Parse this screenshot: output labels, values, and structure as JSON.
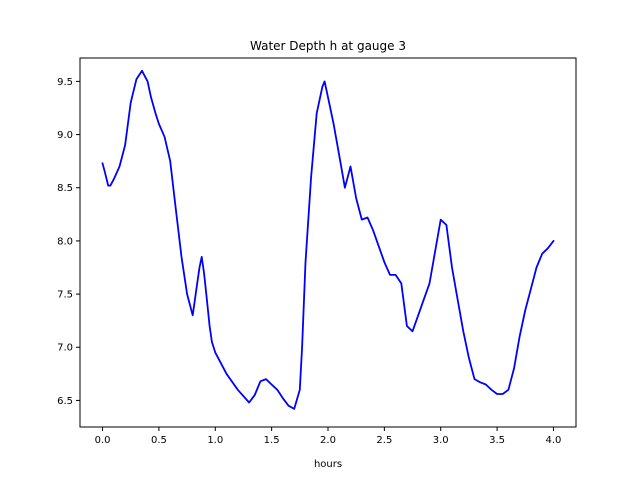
{
  "chart_data": {
    "type": "line",
    "title": "Water Depth h at gauge 3",
    "xlabel": "hours",
    "ylabel": "",
    "xlim": [
      -0.2,
      4.2
    ],
    "ylim": [
      6.25,
      9.72
    ],
    "x_ticks": [
      "0.0",
      "0.5",
      "1.0",
      "1.5",
      "2.0",
      "2.5",
      "3.0",
      "3.5",
      "4.0"
    ],
    "y_ticks": [
      "6.5",
      "7.0",
      "7.5",
      "8.0",
      "8.5",
      "9.0",
      "9.5"
    ],
    "grid": false,
    "legend": "none",
    "series": [
      {
        "color": "#0000ff",
        "x": [
          0.0,
          0.02,
          0.05,
          0.07,
          0.1,
          0.15,
          0.2,
          0.25,
          0.3,
          0.35,
          0.4,
          0.43,
          0.47,
          0.5,
          0.55,
          0.6,
          0.65,
          0.7,
          0.75,
          0.8,
          0.84,
          0.86,
          0.88,
          0.9,
          0.92,
          0.93,
          0.95,
          0.97,
          1.0,
          1.05,
          1.1,
          1.2,
          1.3,
          1.35,
          1.4,
          1.45,
          1.5,
          1.55,
          1.6,
          1.65,
          1.7,
          1.75,
          1.77,
          1.8,
          1.85,
          1.9,
          1.95,
          1.97,
          2.0,
          2.05,
          2.1,
          2.15,
          2.2,
          2.25,
          2.3,
          2.35,
          2.4,
          2.45,
          2.5,
          2.55,
          2.6,
          2.65,
          2.7,
          2.75,
          2.8,
          2.85,
          2.9,
          2.95,
          3.0,
          3.05,
          3.1,
          3.15,
          3.2,
          3.25,
          3.3,
          3.35,
          3.4,
          3.45,
          3.5,
          3.55,
          3.6,
          3.65,
          3.7,
          3.75,
          3.8,
          3.85,
          3.9,
          3.95,
          4.0
        ],
        "values": [
          8.73,
          8.65,
          8.52,
          8.52,
          8.58,
          8.7,
          8.9,
          9.3,
          9.52,
          9.6,
          9.5,
          9.35,
          9.2,
          9.1,
          8.98,
          8.75,
          8.3,
          7.85,
          7.5,
          7.3,
          7.6,
          7.75,
          7.85,
          7.7,
          7.5,
          7.4,
          7.2,
          7.05,
          6.95,
          6.85,
          6.75,
          6.6,
          6.48,
          6.55,
          6.68,
          6.7,
          6.65,
          6.6,
          6.52,
          6.45,
          6.42,
          6.6,
          7.0,
          7.8,
          8.6,
          9.2,
          9.45,
          9.5,
          9.35,
          9.1,
          8.8,
          8.5,
          8.7,
          8.4,
          8.2,
          8.22,
          8.1,
          7.95,
          7.8,
          7.68,
          7.68,
          7.6,
          7.2,
          7.15,
          7.3,
          7.45,
          7.6,
          7.9,
          8.2,
          8.15,
          7.75,
          7.45,
          7.15,
          6.9,
          6.7,
          6.67,
          6.65,
          6.6,
          6.56,
          6.56,
          6.6,
          6.8,
          7.1,
          7.35,
          7.55,
          7.75,
          7.88,
          7.93,
          8.0
        ]
      }
    ]
  }
}
